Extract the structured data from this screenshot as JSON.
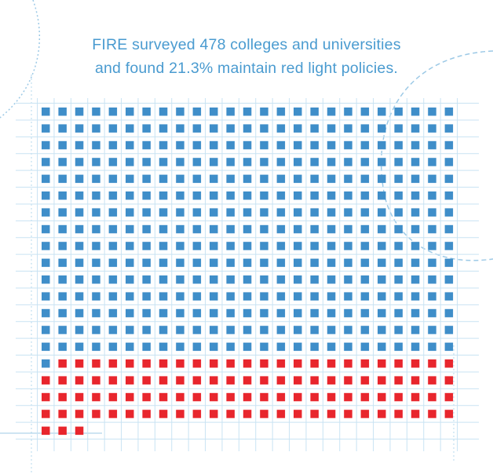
{
  "headline": {
    "line1": "FIRE surveyed 478 colleges and universities",
    "line2": "and found 21.3% maintain red light policies."
  },
  "colors": {
    "text": "#4a9bd0",
    "other_policies": "#3f8ec9",
    "red_light": "#e8262d",
    "grid": "#c9e3f3"
  },
  "chart_data": {
    "type": "waffle",
    "total": 478,
    "per_row": 25,
    "series": [
      {
        "value": 376
      },
      {
        "value": 102
      }
    ]
  }
}
